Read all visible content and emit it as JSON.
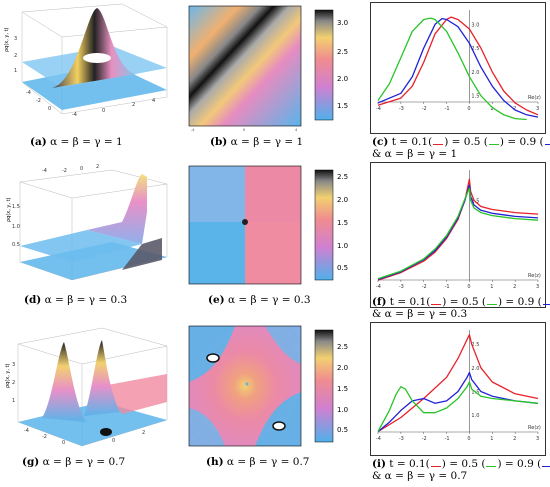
{
  "colors": {
    "red": "#e8202a",
    "green": "#28c428",
    "blue": "#2020d8",
    "surface": "#5ab4ea",
    "plane": "#f08aa0"
  },
  "captions": {
    "a": {
      "label": "(a)",
      "text": "α = β = γ = 1"
    },
    "b": {
      "label": "(b)",
      "text": "α = β = γ = 1"
    },
    "c": {
      "label": "(c)",
      "line1": "t = 0.1(",
      "line1b": ") = 0.5 (",
      "line1c": ") = 0.9 (",
      "line1d": ")",
      "line2": "& α =  β =  γ = 1"
    },
    "d": {
      "label": "(d)",
      "text": "α = β = γ = 0.3"
    },
    "e": {
      "label": "(e)",
      "text": "α = β = γ = 0.3"
    },
    "f": {
      "label": "(f)",
      "line1": "t = 0.1(",
      "line1b": ") = 0.5 (",
      "line1c": ") = 0.9 (",
      "line1d": ")",
      "line2": "& α =  β =  γ = 0.3"
    },
    "g": {
      "label": "(g)",
      "text": "α = β = γ = 0.7"
    },
    "h": {
      "label": "(h)",
      "text": "α = β = γ = 0.7"
    },
    "i": {
      "label": "(i)",
      "line1": "t = 0.1(",
      "line1b": ") = 0.5 (",
      "line1c": ") = 0.9 (",
      "line1d": ")",
      "line2": "& α =  β =  γ = 0.7"
    }
  },
  "surface_labels": {
    "z_axis": "ρq(x, y, t)",
    "z_axis_g": "ρq(x, y, t)"
  },
  "chart_data": [
    {
      "id": "c",
      "type": "line",
      "xlabel": "Re(z)",
      "x_ticks": [
        "-4",
        "-3",
        "-2",
        "-1",
        "0",
        "1",
        "2",
        "3"
      ],
      "y_ticks": [
        "1.5",
        "2.0",
        "2.5",
        "3.0"
      ],
      "xlim": [
        -4,
        3
      ],
      "ylim": [
        1.2,
        3.3
      ],
      "series": [
        {
          "color": "red",
          "x": [
            -4,
            -3,
            -2.5,
            -2,
            -1.5,
            -1,
            -0.8,
            -0.5,
            0,
            0.5,
            1,
            1.5,
            2,
            2.5,
            3
          ],
          "y": [
            1.3,
            1.45,
            1.7,
            2.2,
            2.8,
            3.1,
            3.15,
            3.1,
            2.9,
            2.5,
            2.0,
            1.6,
            1.35,
            1.2,
            1.1
          ]
        },
        {
          "color": "blue",
          "x": [
            -4,
            -3,
            -2.5,
            -2,
            -1.5,
            -1.2,
            -1,
            -0.5,
            0,
            0.5,
            1,
            1.5,
            2,
            2.5,
            3
          ],
          "y": [
            1.35,
            1.55,
            1.9,
            2.5,
            3.0,
            3.12,
            3.1,
            2.95,
            2.6,
            2.1,
            1.7,
            1.4,
            1.2,
            1.1,
            1.05
          ]
        },
        {
          "color": "green",
          "x": [
            -4,
            -3.5,
            -3,
            -2.5,
            -2,
            -1.7,
            -1.5,
            -1,
            -0.5,
            0,
            0.5,
            1,
            1.5,
            2,
            2.5
          ],
          "y": [
            1.4,
            1.75,
            2.3,
            2.85,
            3.1,
            3.13,
            3.1,
            2.85,
            2.4,
            1.9,
            1.5,
            1.25,
            1.1,
            1.02,
            1.0
          ]
        }
      ]
    },
    {
      "id": "e",
      "type": "heatmap",
      "colorbar_ticks": [
        "0.5",
        "1.0",
        "1.5",
        "2.0",
        "2.5"
      ],
      "colorbar_range": [
        0.2,
        2.6
      ]
    },
    {
      "id": "b",
      "type": "heatmap",
      "colorbar_ticks": [
        "1.5",
        "2.0",
        "2.5",
        "3.0"
      ],
      "colorbar_range": [
        1.2,
        3.3
      ]
    },
    {
      "id": "h",
      "type": "heatmap",
      "colorbar_ticks": [
        "0.5",
        "1.0",
        "1.5",
        "2.0",
        "2.5"
      ],
      "colorbar_range": [
        0.2,
        2.8
      ]
    },
    {
      "id": "f",
      "type": "line",
      "xlabel": "Re(z)",
      "x_ticks": [
        "-4",
        "-3",
        "-2",
        "-1",
        "0",
        "1",
        "2",
        "3"
      ],
      "y_ticks": [
        "1.5"
      ],
      "xlim": [
        -4,
        3
      ],
      "ylim": [
        0.4,
        1.9
      ],
      "series": [
        {
          "color": "red",
          "x": [
            -4,
            -3,
            -2,
            -1.5,
            -1,
            -0.5,
            -0.2,
            0,
            0.05,
            0.2,
            0.5,
            1,
            2,
            3
          ],
          "y": [
            0.45,
            0.55,
            0.7,
            0.82,
            1.0,
            1.25,
            1.5,
            1.78,
            1.62,
            1.5,
            1.42,
            1.38,
            1.34,
            1.32
          ]
        },
        {
          "color": "blue",
          "x": [
            -4,
            -3,
            -2,
            -1.5,
            -1,
            -0.5,
            -0.2,
            0,
            0.05,
            0.2,
            0.5,
            1,
            2,
            3
          ],
          "y": [
            0.46,
            0.56,
            0.72,
            0.84,
            1.02,
            1.27,
            1.5,
            1.7,
            1.55,
            1.44,
            1.37,
            1.33,
            1.29,
            1.27
          ]
        },
        {
          "color": "green",
          "x": [
            -4,
            -3,
            -2,
            -1.5,
            -1,
            -0.5,
            -0.2,
            0,
            0.05,
            0.2,
            0.5,
            1,
            2,
            3
          ],
          "y": [
            0.47,
            0.57,
            0.73,
            0.86,
            1.04,
            1.29,
            1.52,
            1.66,
            1.5,
            1.4,
            1.34,
            1.3,
            1.26,
            1.24
          ]
        }
      ]
    },
    {
      "id": "i",
      "type": "line",
      "xlabel": "Re(z)",
      "x_ticks": [
        "-4",
        "-3",
        "-2",
        "-1",
        "0",
        "1",
        "2",
        "3"
      ],
      "y_ticks": [
        "1.0",
        "1.5",
        "2.0",
        "2.5"
      ],
      "xlim": [
        -4,
        3
      ],
      "ylim": [
        0.6,
        2.8
      ],
      "series": [
        {
          "color": "red",
          "x": [
            -4,
            -3,
            -2,
            -1,
            -0.5,
            -0.1,
            0,
            0.1,
            0.5,
            1,
            2,
            3
          ],
          "y": [
            0.65,
            0.95,
            1.35,
            1.8,
            2.2,
            2.6,
            2.7,
            2.5,
            2.0,
            1.7,
            1.45,
            1.35
          ]
        },
        {
          "color": "blue",
          "x": [
            -4,
            -3.5,
            -3,
            -2.5,
            -2,
            -1.5,
            -1,
            -0.5,
            -0.1,
            0,
            0.1,
            0.5,
            1,
            2,
            3
          ],
          "y": [
            0.65,
            0.85,
            1.1,
            1.3,
            1.35,
            1.25,
            1.3,
            1.5,
            1.8,
            1.9,
            1.75,
            1.5,
            1.4,
            1.3,
            1.25
          ]
        },
        {
          "color": "green",
          "x": [
            -4,
            -3.5,
            -3.2,
            -3,
            -2.8,
            -2.5,
            -2,
            -1.5,
            -1,
            -0.5,
            -0.1,
            0,
            0.1,
            0.5,
            1,
            2,
            3
          ],
          "y": [
            0.65,
            1.1,
            1.45,
            1.6,
            1.55,
            1.3,
            1.05,
            1.05,
            1.15,
            1.35,
            1.6,
            1.7,
            1.55,
            1.4,
            1.35,
            1.3,
            1.25
          ]
        }
      ]
    }
  ]
}
